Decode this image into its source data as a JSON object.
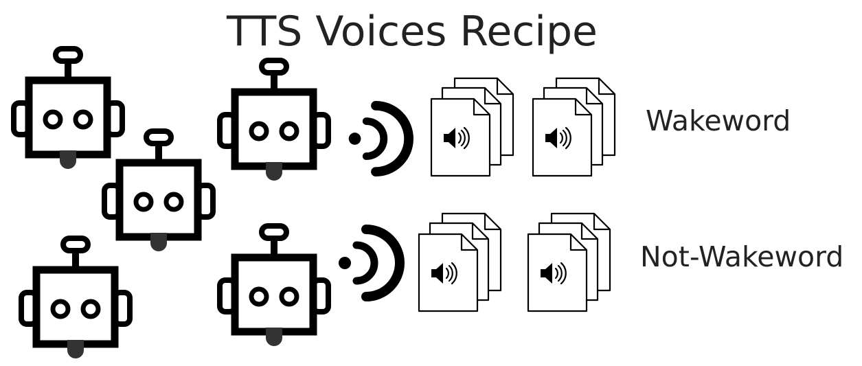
{
  "title": "TTS Voices Recipe",
  "rows": [
    {
      "label": "Wakeword"
    },
    {
      "label": "Not-Wakeword"
    }
  ],
  "icons": {
    "robot": "robot-icon",
    "sound_wave": "sound-wave-icon",
    "audio_file_stack": "audio-file-stack-icon"
  },
  "colors": {
    "ink": "#000000",
    "tongue": "#333333",
    "text": "#222222",
    "background": "#ffffff"
  }
}
